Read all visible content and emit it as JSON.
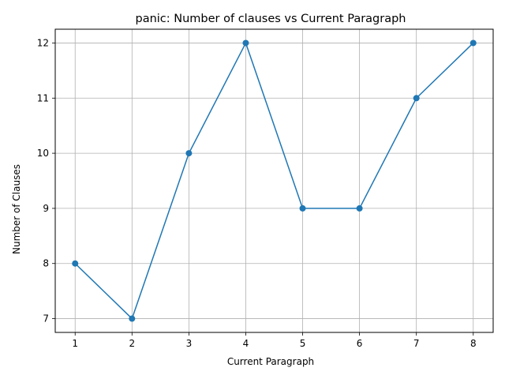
{
  "chart_data": {
    "type": "line",
    "title": "panic: Number of clauses vs Current Paragraph",
    "xlabel": "Current Paragraph",
    "ylabel": "Number of Clauses",
    "x": [
      1,
      2,
      3,
      4,
      5,
      6,
      7,
      8
    ],
    "series": [
      {
        "values": [
          8,
          7,
          10,
          12,
          9,
          9,
          11,
          12
        ],
        "color": "#1f77b4",
        "marker": "circle"
      }
    ],
    "xticks": [
      1,
      2,
      3,
      4,
      5,
      6,
      7,
      8
    ],
    "yticks": [
      7,
      8,
      9,
      10,
      11,
      12
    ],
    "xlim": [
      0.65,
      8.35
    ],
    "ylim": [
      6.75,
      12.25
    ],
    "grid": true,
    "legend": "none"
  }
}
